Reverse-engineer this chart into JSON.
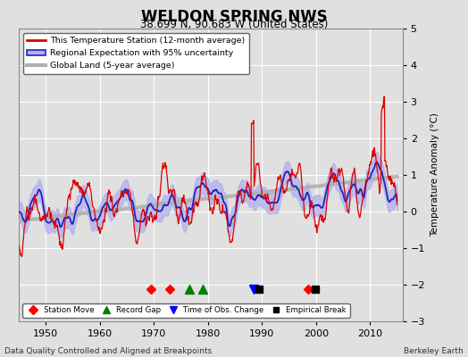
{
  "title": "WELDON SPRING NWS",
  "subtitle": "38.699 N, 90.683 W (United States)",
  "ylabel": "Temperature Anomaly (°C)",
  "footer_left": "Data Quality Controlled and Aligned at Breakpoints",
  "footer_right": "Berkeley Earth",
  "xlim": [
    1945,
    2016
  ],
  "ylim": [
    -3,
    5
  ],
  "yticks": [
    -3,
    -2,
    -1,
    0,
    1,
    2,
    3,
    4,
    5
  ],
  "xticks": [
    1950,
    1960,
    1970,
    1980,
    1990,
    2000,
    2010
  ],
  "station_moves": [
    1969.5,
    1973.0,
    1998.5
  ],
  "record_gaps": [
    1976.5,
    1979.0
  ],
  "obs_changes": [
    1988.5
  ],
  "empirical_breaks": [
    1989.5,
    1999.8
  ],
  "bg_color": "#e0e0e0",
  "plot_bg_color": "#e0e0e0",
  "grid_color": "#ffffff",
  "station_line_color": "#dd0000",
  "regional_line_color": "#2222bb",
  "regional_fill_color": "#b0b0ee",
  "global_line_color": "#b0b0b0",
  "seed": 12345
}
